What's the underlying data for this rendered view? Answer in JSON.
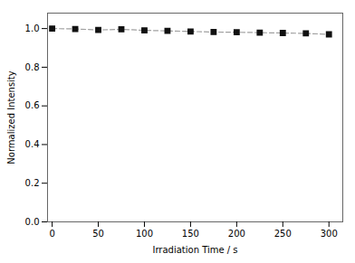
{
  "chart_data": {
    "type": "line",
    "x": [
      0,
      25,
      50,
      75,
      100,
      125,
      150,
      175,
      200,
      225,
      250,
      275,
      300
    ],
    "values": [
      1.0,
      0.998,
      0.993,
      0.996,
      0.991,
      0.988,
      0.985,
      0.982,
      0.981,
      0.979,
      0.977,
      0.975,
      0.97
    ],
    "xlabel": "Irradiation Time / s",
    "ylabel": "Normalized Intensity",
    "xlim": [
      -5,
      315
    ],
    "ylim": [
      0.0,
      1.08
    ],
    "xticks": [
      0,
      50,
      100,
      150,
      200,
      250,
      300
    ],
    "yticks": [
      {
        "value": 0.0,
        "label": "0.0"
      },
      0.2,
      0.4,
      0.6,
      0.8,
      {
        "value": 1.0,
        "label": "1.0"
      }
    ],
    "color": "#111111",
    "marker": "square",
    "line_style": "dashed"
  }
}
